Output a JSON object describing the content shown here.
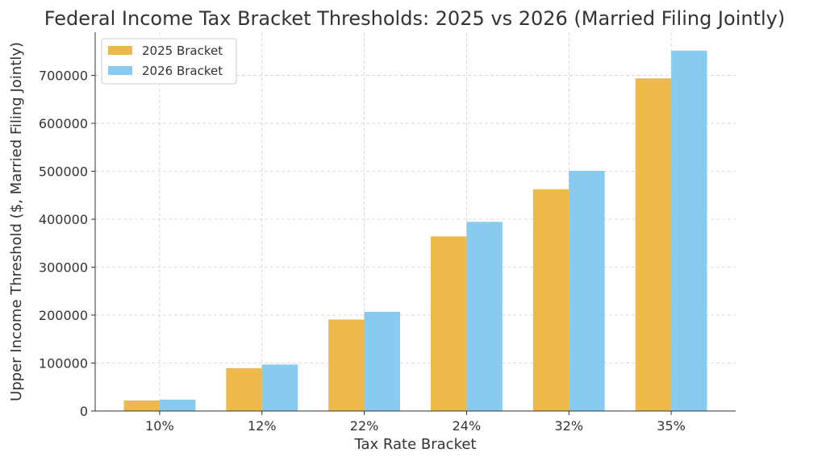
{
  "chart_data": {
    "type": "bar",
    "title": "Federal Income Tax Bracket Thresholds: 2025 vs 2026 (Married Filing Jointly)",
    "xlabel": "Tax Rate Bracket",
    "ylabel": "Upper Income Threshold ($, Married Filing Jointly)",
    "categories": [
      "10%",
      "12%",
      "22%",
      "24%",
      "32%",
      "35%"
    ],
    "series": [
      {
        "name": "2025 Bracket",
        "color": "#EDB94B",
        "values": [
          22000,
          89450,
          190750,
          364200,
          462500,
          693750
        ]
      },
      {
        "name": "2026 Bracket",
        "color": "#89CBEF",
        "values": [
          23850,
          96950,
          206700,
          394600,
          501050,
          751600
        ]
      }
    ],
    "ylim": [
      0,
      790000
    ],
    "yticks": [
      0,
      100000,
      200000,
      300000,
      400000,
      500000,
      600000,
      700000
    ],
    "grid": true,
    "legend": "top-left"
  }
}
